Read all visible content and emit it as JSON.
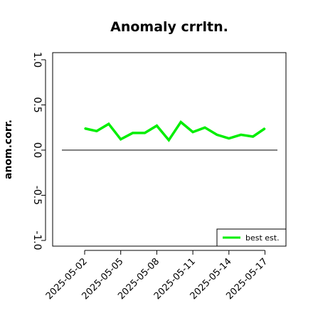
{
  "chart_data": {
    "type": "line",
    "title": "Anomaly crrltn.",
    "xlabel": "",
    "ylabel": "anom.corr.",
    "ylim": [
      -1.0,
      1.0
    ],
    "yticks": [
      "-1.0",
      "-0.5",
      "0.0",
      "0.5",
      "1.0"
    ],
    "x": [
      "2025-05-02",
      "2025-05-03",
      "2025-05-04",
      "2025-05-05",
      "2025-05-06",
      "2025-05-07",
      "2025-05-08",
      "2025-05-09",
      "2025-05-10",
      "2025-05-11",
      "2025-05-12",
      "2025-05-13",
      "2025-05-14",
      "2025-05-15",
      "2025-05-16",
      "2025-05-17"
    ],
    "xtick_labels": [
      "2025-05-02",
      "2025-05-05",
      "2025-05-08",
      "2025-05-11",
      "2025-05-14",
      "2025-05-17"
    ],
    "highlight_tick": "2025-05-08",
    "highlight_color": "#228B22",
    "reference_line": 0.0,
    "series": [
      {
        "name": "best est.",
        "color": "#00ee00",
        "values": [
          0.24,
          0.21,
          0.29,
          0.12,
          0.19,
          0.19,
          0.27,
          0.11,
          0.31,
          0.2,
          0.25,
          0.17,
          0.13,
          0.17,
          0.15,
          0.24
        ]
      }
    ],
    "grid": false,
    "legend_position": "bottom-right"
  }
}
